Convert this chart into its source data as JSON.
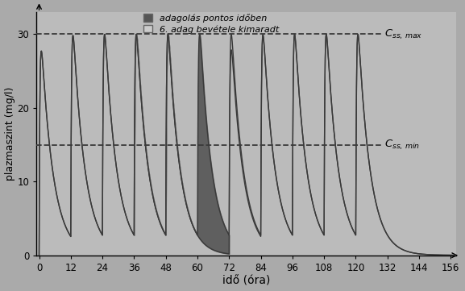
{
  "background_color": "#aaaaaa",
  "plot_bg_color": "#bbbbbb",
  "line_color": "#3a3a3a",
  "css_max": 30,
  "css_min": 15,
  "x_max": 158,
  "x_ticks": [
    0,
    12,
    24,
    36,
    48,
    60,
    72,
    84,
    96,
    108,
    120,
    132,
    144,
    156
  ],
  "y_max": 33,
  "y_ticks": [
    0,
    10,
    20,
    30
  ],
  "xlabel": "idő (óra)",
  "ylabel": "plazmaszint (mg/l)",
  "legend1": "adagolás pontos időben",
  "legend2": "6. adag bevétele kimaradt",
  "css_max_label": "$\\mathit{C}_{ss,\\,max}$",
  "css_min_label": "$\\mathit{C}_{ss,\\,min}$",
  "dose_interval": 12,
  "last_dose_time": 120,
  "missed_dose_time": 60,
  "dark_fill_color": "#555555",
  "light_fill_color": "#999999",
  "ke": 0.22,
  "ka": 3.5,
  "n_doses": 11
}
